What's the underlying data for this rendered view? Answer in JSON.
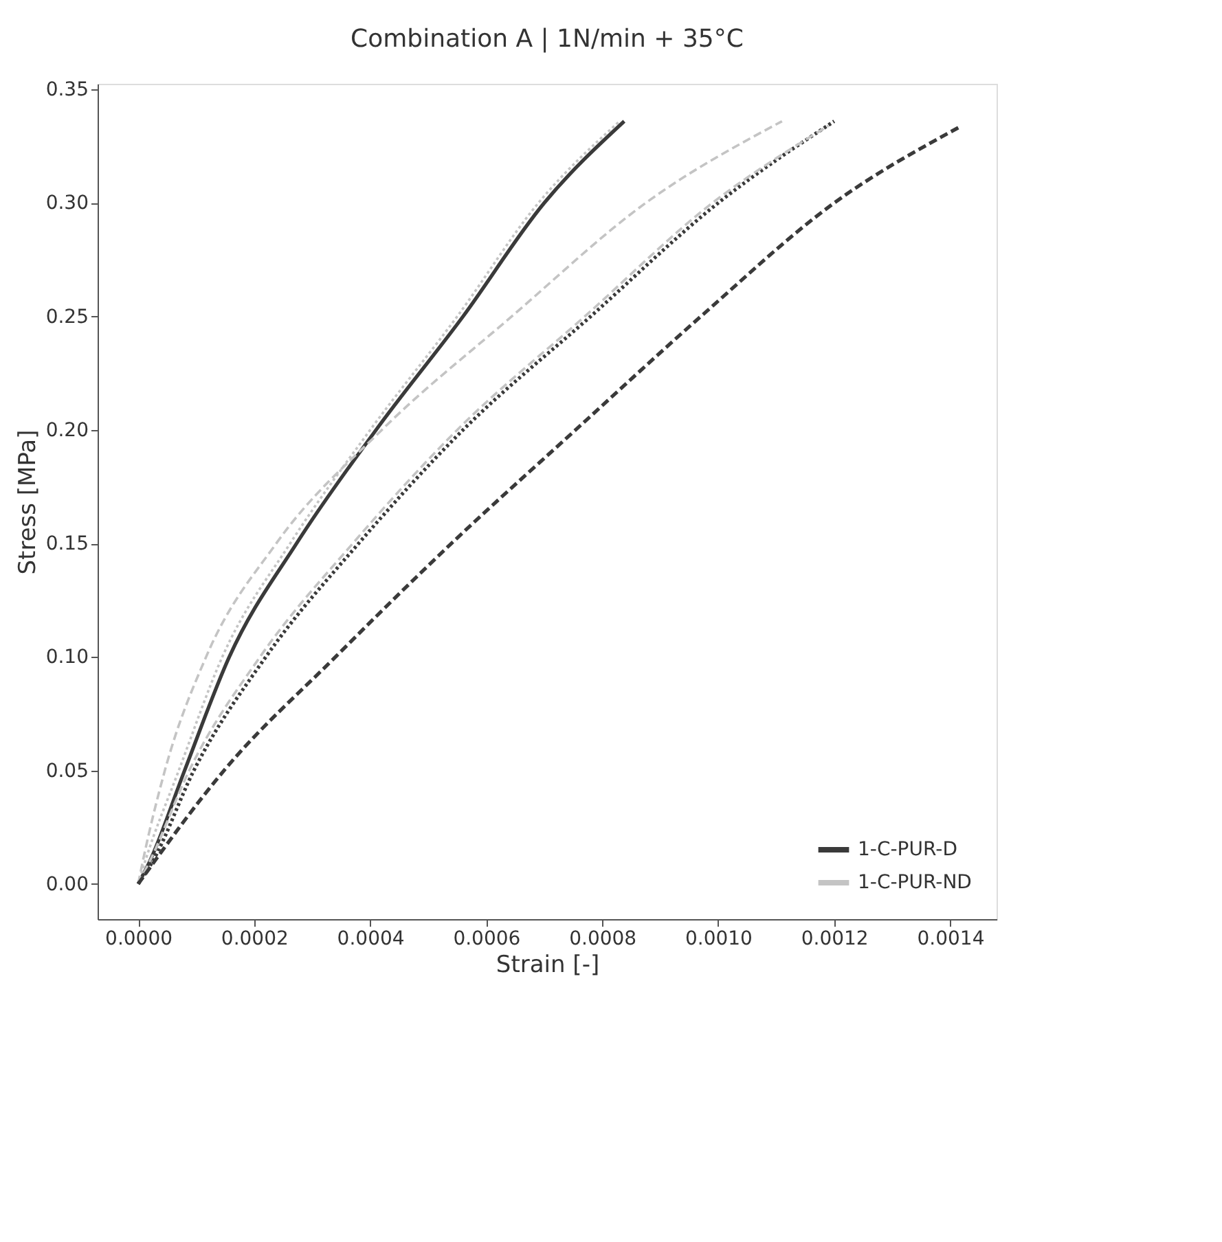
{
  "chart_data": {
    "type": "line",
    "title": "Combination A | 1N/min + 35°C",
    "xlabel": "Strain [-]",
    "ylabel": "Stress [MPa]",
    "xlim": [
      -7e-05,
      0.00148
    ],
    "ylim": [
      -0.0155,
      0.3525
    ],
    "xticks": [
      {
        "value": 0,
        "label": "0.0000"
      },
      {
        "value": 0.0002,
        "label": "0.0002"
      },
      {
        "value": 0.0004,
        "label": "0.0004"
      },
      {
        "value": 0.0006,
        "label": "0.0006"
      },
      {
        "value": 0.0008,
        "label": "0.0008"
      },
      {
        "value": 0.001,
        "label": "0.0010"
      },
      {
        "value": 0.0012,
        "label": "0.0012"
      },
      {
        "value": 0.0014,
        "label": "0.0014"
      }
    ],
    "yticks": [
      {
        "value": 0,
        "label": "0.00"
      },
      {
        "value": 0.05,
        "label": "0.05"
      },
      {
        "value": 0.1,
        "label": "0.10"
      },
      {
        "value": 0.15,
        "label": "0.15"
      },
      {
        "value": 0.2,
        "label": "0.20"
      },
      {
        "value": 0.25,
        "label": "0.25"
      },
      {
        "value": 0.3,
        "label": "0.30"
      },
      {
        "value": 0.35,
        "label": "0.35"
      }
    ],
    "grid": false,
    "legend": "bottom right",
    "marker": "none",
    "series": [
      {
        "name": "1-C-PUR-D",
        "color": "#3a3a3a",
        "line_style": "solid",
        "x": [
          0,
          2e-05,
          8e-05,
          0.000157,
          0.000273,
          0.00041,
          0.00056,
          0.0007,
          0.000838
        ],
        "values": [
          0,
          0.01,
          0.05,
          0.1,
          0.15,
          0.2,
          0.25,
          0.3,
          0.336
        ]
      },
      {
        "name": "1-C-PUR-ND",
        "color": "#c4c4c4",
        "line_style": "dotted",
        "x": [
          0,
          1.2e-05,
          7e-05,
          0.000145,
          0.000262,
          0.0004,
          0.00055,
          0.00069,
          0.00083
        ],
        "values": [
          0,
          0.01,
          0.05,
          0.1,
          0.15,
          0.2,
          0.25,
          0.3,
          0.336
        ]
      },
      {
        "color": "#c4c4c4",
        "line_style": "dashed",
        "x": [
          0,
          8e-06,
          4.6e-05,
          0.000117,
          0.000238,
          0.00042,
          0.000644,
          0.000875,
          0.00111
        ],
        "values": [
          0,
          0.01,
          0.05,
          0.1,
          0.15,
          0.2,
          0.25,
          0.3,
          0.336
        ]
      },
      {
        "color": "#3a3a3a",
        "line_style": "dotted",
        "x": [
          0,
          2.5e-05,
          9.6e-05,
          0.00022,
          0.00038,
          0.00056,
          0.00078,
          0.001,
          0.0012
        ],
        "values": [
          0,
          0.01,
          0.05,
          0.1,
          0.15,
          0.2,
          0.25,
          0.3,
          0.336
        ]
      },
      {
        "color": "#c4c4c4",
        "line_style": "dashed",
        "x": [
          0,
          2e-05,
          8.8e-05,
          0.00021,
          0.00037,
          0.00055,
          0.00077,
          0.00099,
          0.00119
        ],
        "values": [
          0,
          0.01,
          0.05,
          0.1,
          0.15,
          0.2,
          0.25,
          0.3,
          0.334
        ]
      },
      {
        "color": "#3a3a3a",
        "line_style": "dashed",
        "x": [
          0,
          0.000148,
          0.00034,
          0.00054,
          0.000754,
          0.00097,
          0.0012,
          0.00142
        ],
        "values": [
          0,
          0.05,
          0.1,
          0.15,
          0.2,
          0.25,
          0.3,
          0.334
        ]
      }
    ]
  }
}
